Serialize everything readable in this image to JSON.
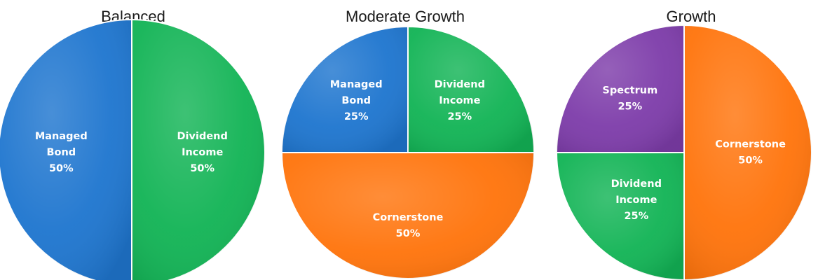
{
  "chart_data": [
    {
      "type": "pie",
      "title": "Balanced",
      "slices": [
        {
          "label": [
            "Managed",
            "Bond",
            "50%"
          ],
          "value": 50,
          "color": "#1F76CF"
        },
        {
          "label": [
            "Dividend",
            "Income",
            "50%"
          ],
          "value": 50,
          "color": "#13B456"
        }
      ]
    },
    {
      "type": "pie",
      "title": "Moderate Growth",
      "slices": [
        {
          "label": [
            "Managed",
            "Bond",
            "25%"
          ],
          "value": 25,
          "color": "#1F76CF"
        },
        {
          "label": [
            "Dividend",
            "Income",
            "25%"
          ],
          "value": 25,
          "color": "#13B456"
        },
        {
          "label": [
            "Cornerstone",
            "50%"
          ],
          "value": 50,
          "color": "#FF740C"
        }
      ]
    },
    {
      "type": "pie",
      "title": "Growth",
      "slices": [
        {
          "label": [
            "Spectrum",
            "25%"
          ],
          "value": 25,
          "color": "#7E3DAA"
        },
        {
          "label": [
            "Cornerstone",
            "50%"
          ],
          "value": 50,
          "color": "#FF740C"
        },
        {
          "label": [
            "Dividend",
            "Income",
            "25%"
          ],
          "value": 25,
          "color": "#13B456"
        }
      ]
    }
  ]
}
